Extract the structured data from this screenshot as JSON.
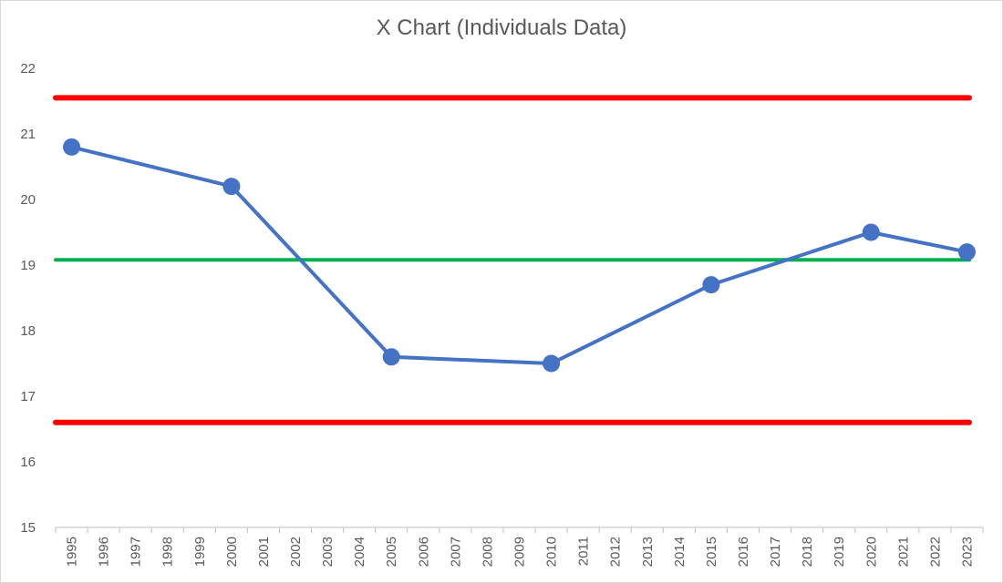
{
  "chart_data": {
    "type": "line",
    "title": "X Chart (Individuals Data)",
    "xlabel": "",
    "ylabel": "",
    "ylim": [
      15,
      22
    ],
    "y_ticks": [
      "15",
      "16",
      "17",
      "18",
      "19",
      "20",
      "21",
      "22"
    ],
    "categories": [
      "1995",
      "1996",
      "1997",
      "1998",
      "1999",
      "2000",
      "2001",
      "2002",
      "2003",
      "2004",
      "2005",
      "2006",
      "2007",
      "2008",
      "2009",
      "2010",
      "2011",
      "2012",
      "2013",
      "2014",
      "2015",
      "2016",
      "2017",
      "2018",
      "2019",
      "2020",
      "2021",
      "2022",
      "2023"
    ],
    "series": [
      {
        "values": [
          20.8,
          null,
          null,
          null,
          null,
          20.2,
          null,
          null,
          null,
          null,
          17.6,
          null,
          null,
          null,
          null,
          17.5,
          null,
          null,
          null,
          null,
          18.7,
          null,
          null,
          null,
          null,
          19.5,
          null,
          null,
          19.2
        ],
        "color": "#4472c4"
      }
    ],
    "reference_lines": [
      {
        "value": 21.55,
        "color": "#ff0000"
      },
      {
        "value": 19.08,
        "color": "#00b050"
      },
      {
        "value": 16.6,
        "color": "#ff0000"
      }
    ],
    "grid": false,
    "legend": "none"
  }
}
